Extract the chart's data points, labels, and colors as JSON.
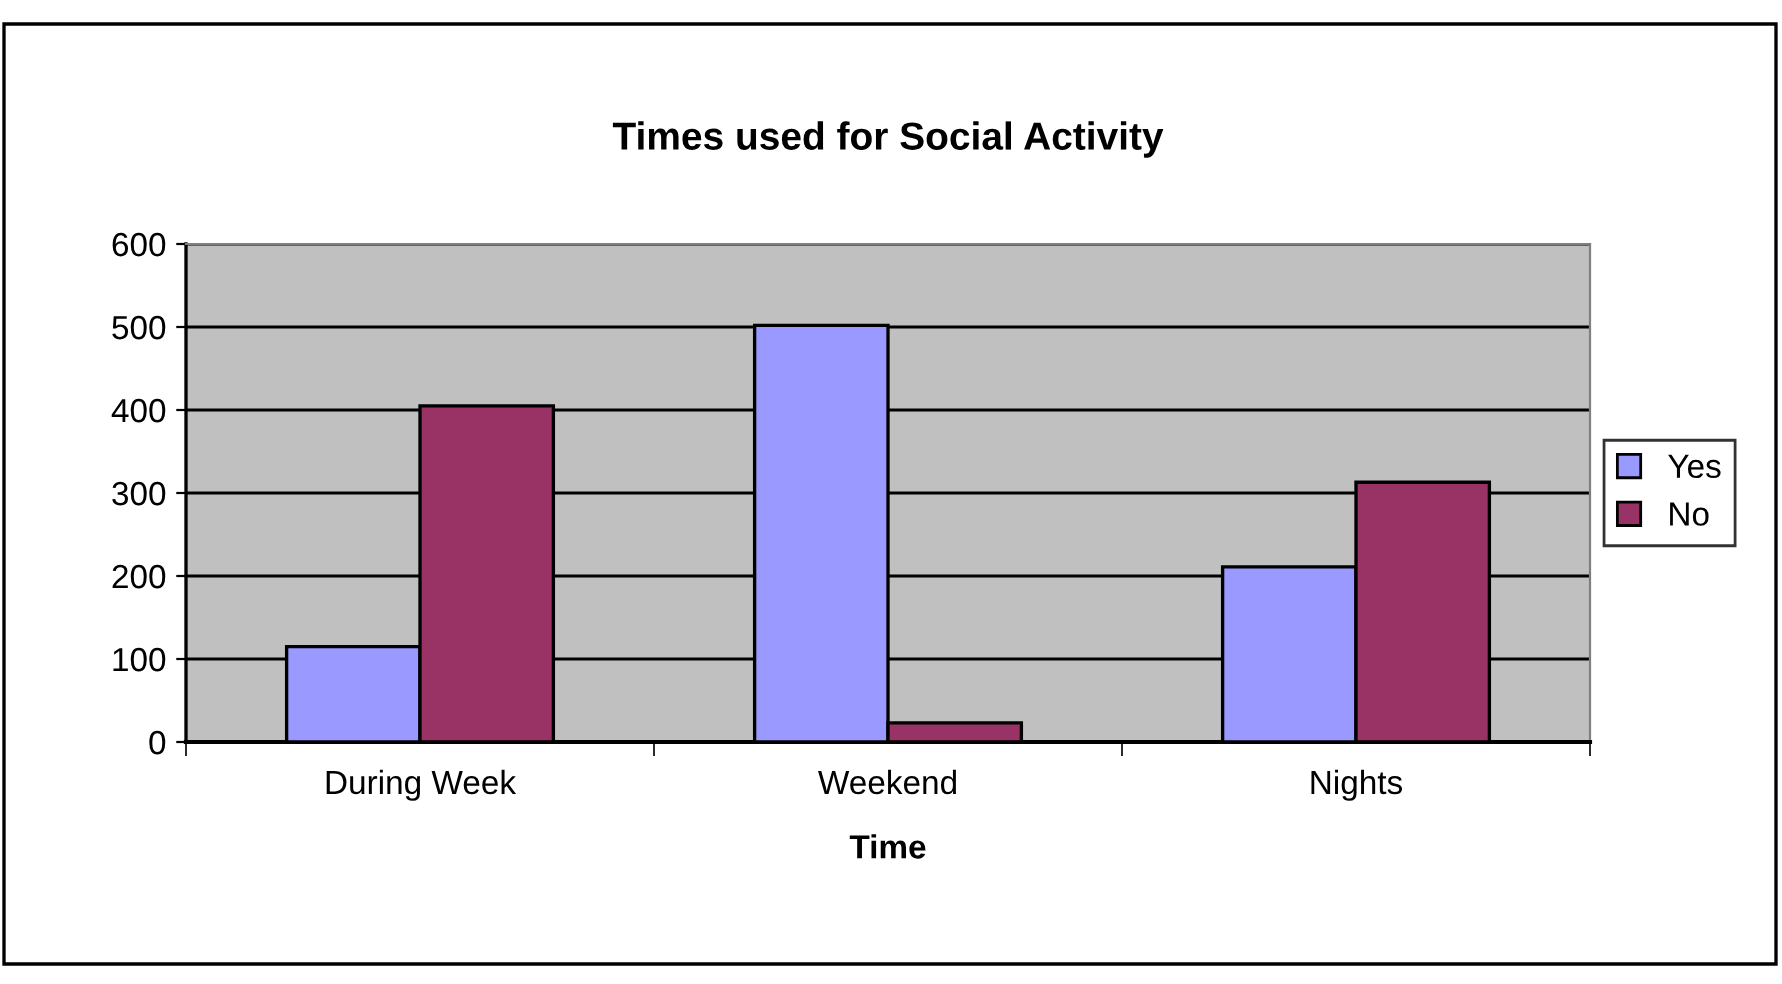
{
  "chart_data": {
    "type": "bar",
    "title": "Times used for Social Activity",
    "xlabel": "Time",
    "categories": [
      "During Week",
      "Weekend",
      "Nights"
    ],
    "series": [
      {
        "name": "Yes",
        "color": "#9999ff",
        "values": [
          115,
          502,
          211
        ]
      },
      {
        "name": "No",
        "color": "#993366",
        "values": [
          405,
          23,
          313
        ]
      }
    ],
    "ylim": [
      0,
      600
    ],
    "yticks": [
      0,
      100,
      200,
      300,
      400,
      500,
      600
    ],
    "grid": "y",
    "legend": "right"
  }
}
